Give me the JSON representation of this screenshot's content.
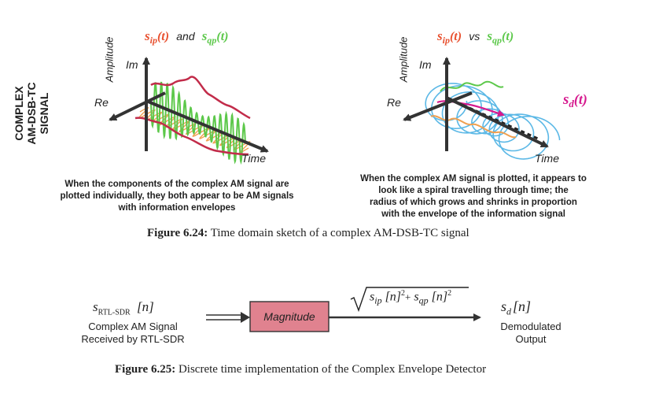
{
  "side_label": [
    "COMPLEX",
    "AM-DSB-TC",
    "SIGNAL"
  ],
  "left_plot": {
    "amplitude": "Amplitude",
    "im": "Im",
    "re": "Re",
    "time": "Time",
    "title_s1": "s",
    "title_s1_sub": "ip",
    "title_t": "(t)",
    "title_and": "and",
    "title_s2": "s",
    "title_s2_sub": "qp",
    "description": [
      "When the components of the complex AM signal are",
      "plotted individually, they both appear to be AM signals",
      "with information envelopes"
    ]
  },
  "right_plot": {
    "amplitude": "Amplitude",
    "im": "Im",
    "re": "Re",
    "time": "Time",
    "title_s1": "s",
    "title_s1_sub": "ip",
    "title_t": "(t)",
    "title_vs": "vs",
    "title_s2": "s",
    "title_s2_sub": "qp",
    "sd_s": "s",
    "sd_sub": "d",
    "sd_t": "(t)",
    "description": [
      "When the complex AM signal is plotted, it appears to",
      "look like a spiral travelling through time; the",
      "radius of which grows and shrinks in proportion",
      "with the envelope of the information signal"
    ]
  },
  "figure_624": {
    "label": "Figure 6.24:",
    "text": " Time domain sketch of a complex AM-DSB-TC signal"
  },
  "block_diagram": {
    "input_symbol": "s",
    "input_sub": "RTL-SDR",
    "input_index": "[n]",
    "input_line1": "Complex AM Signal",
    "input_line2": "Received by RTL-SDR",
    "block_label": "Magnitude",
    "formula_s1": "s",
    "formula_s1_sub": "ip",
    "formula_n1": "[n]",
    "formula_sq1": "2",
    "formula_plus": "+",
    "formula_s2": "s",
    "formula_s2_sub": "qp",
    "formula_n2": "[n]",
    "formula_sq2": "2",
    "output_symbol": "s",
    "output_sub": "d",
    "output_index": "[n]",
    "output_line1": "Demodulated",
    "output_line2": "Output"
  },
  "figure_625": {
    "label": "Figure 6.25:",
    "text": " Discrete time implementation of the Complex Envelope Detector"
  },
  "colors": {
    "ip": "#e8502f",
    "qp": "#5cc84a",
    "sd": "#d6198e",
    "envelope": "#c22c4a",
    "spiral": "#5bb8e6",
    "orange": "#f0a050",
    "block_fill": "#e0828f",
    "axis": "#333333"
  }
}
